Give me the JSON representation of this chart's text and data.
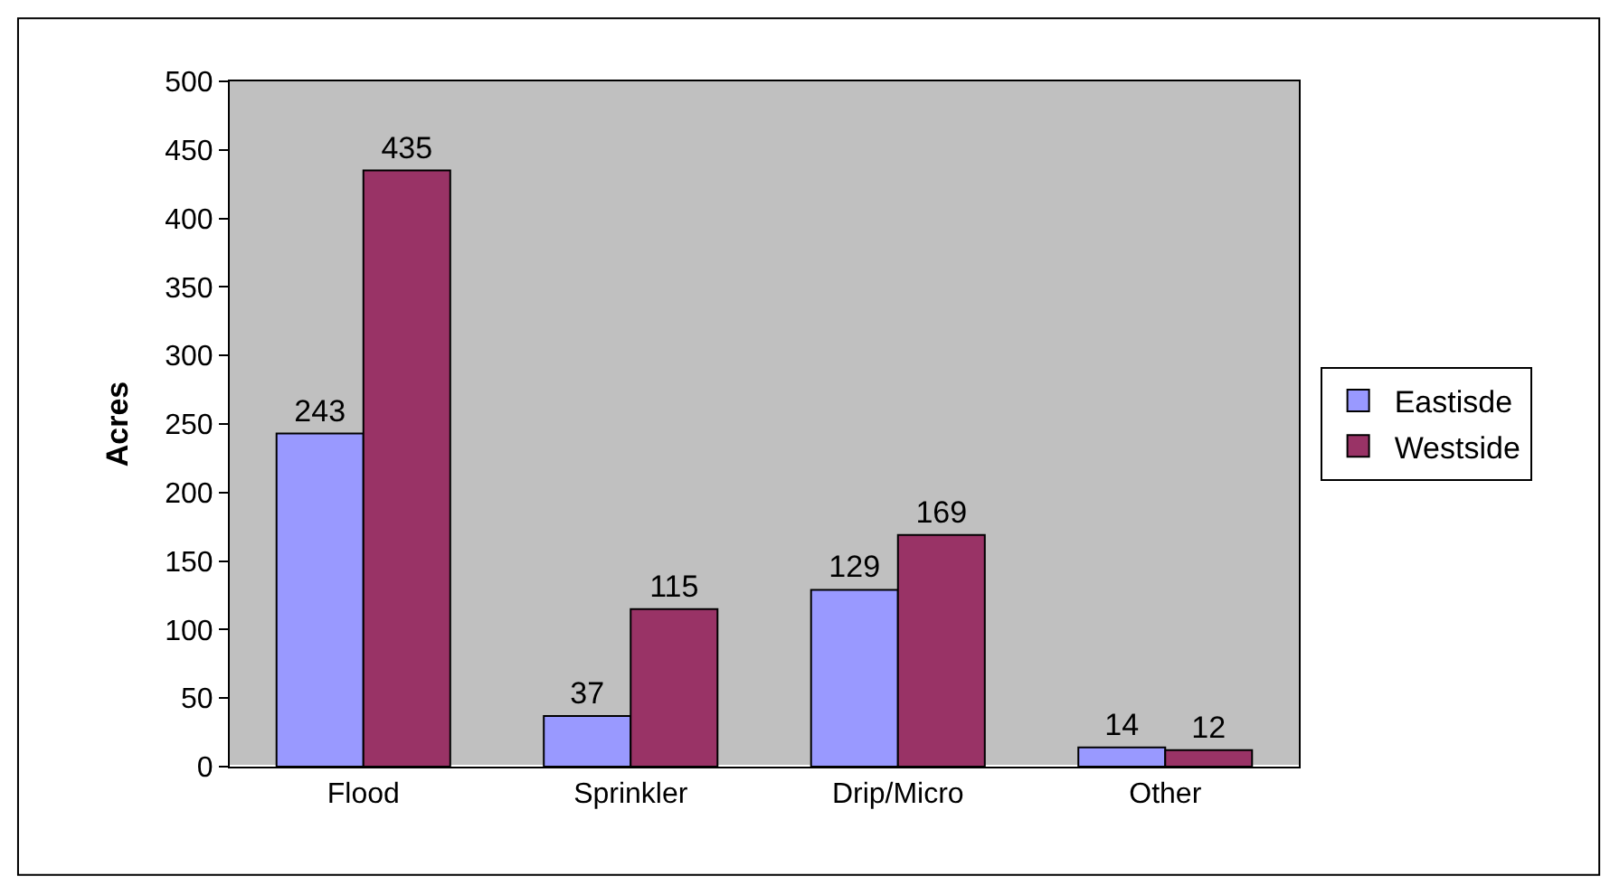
{
  "chart_data": {
    "type": "bar",
    "ylabel": "Acres",
    "categories": [
      "Flood",
      "Sprinkler",
      "Drip/Micro",
      "Other"
    ],
    "series": [
      {
        "name": "Eastisde",
        "color": "#9999ff",
        "values": [
          243,
          37,
          129,
          14
        ]
      },
      {
        "name": "Westside",
        "color": "#993366",
        "values": [
          435,
          115,
          169,
          12
        ]
      }
    ],
    "ylim": [
      0,
      500
    ],
    "yticks": [
      0,
      50,
      100,
      150,
      200,
      250,
      300,
      350,
      400,
      450,
      500
    ],
    "data_labels": true,
    "grid": false,
    "legend": "right"
  }
}
